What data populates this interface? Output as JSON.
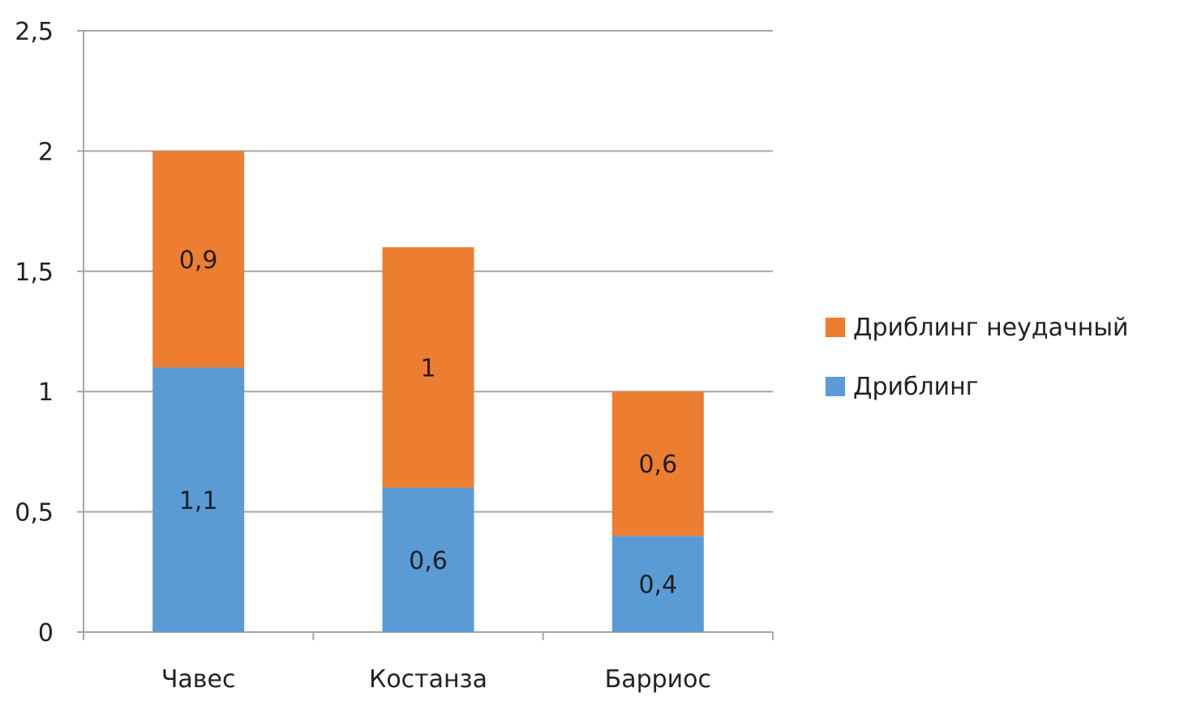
{
  "chart_data": {
    "type": "bar",
    "stacked": true,
    "categories": [
      "Чавес",
      "Костанза",
      "Барриос"
    ],
    "series": [
      {
        "name": "Дриблинг",
        "values": [
          1.1,
          0.6,
          0.4
        ],
        "labels": [
          "1,1",
          "0,6",
          "0,4"
        ],
        "color": "#5B9BD5"
      },
      {
        "name": "Дриблинг неудачный",
        "values": [
          0.9,
          1.0,
          0.6
        ],
        "labels": [
          "0,9",
          "1",
          "0,6"
        ],
        "color": "#ED7D31"
      }
    ],
    "ylim": [
      0,
      2.5
    ],
    "yticks": [
      {
        "value": 0,
        "label": "0"
      },
      {
        "value": 0.5,
        "label": "0,5"
      },
      {
        "value": 1,
        "label": "1"
      },
      {
        "value": 1.5,
        "label": "1,5"
      },
      {
        "value": 2,
        "label": "2"
      },
      {
        "value": 2.5,
        "label": "2,5"
      }
    ],
    "grid": true,
    "legend_position": "right",
    "legend_order": [
      "Дриблинг неудачный",
      "Дриблинг"
    ],
    "title": "",
    "xlabel": "",
    "ylabel": ""
  }
}
